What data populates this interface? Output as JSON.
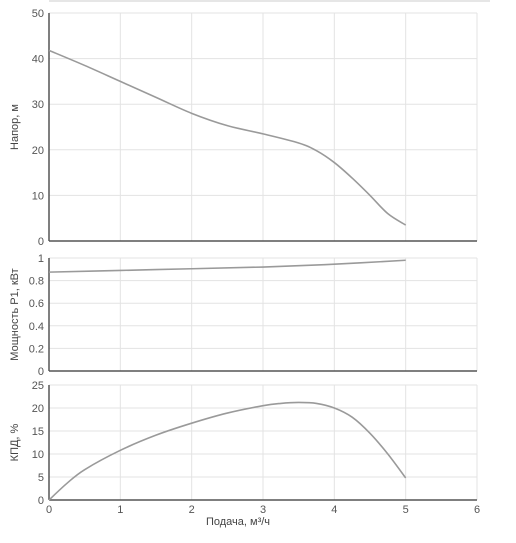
{
  "chart_data": [
    {
      "type": "line",
      "ylabel": "Напор, м",
      "xlim": [
        0,
        6
      ],
      "ylim": [
        0,
        50
      ],
      "y_ticks": [
        0,
        10,
        20,
        30,
        40,
        50
      ],
      "grid": true,
      "series": [
        {
          "x": [
            0,
            0.5,
            1,
            1.5,
            2,
            2.5,
            3,
            3.5,
            3.75,
            4,
            4.25,
            4.5,
            4.75,
            5
          ],
          "y": [
            41.8,
            38.5,
            35,
            31.5,
            28,
            25.3,
            23.5,
            21.5,
            19.8,
            17.2,
            13.8,
            10,
            6,
            3.5
          ]
        }
      ]
    },
    {
      "type": "line",
      "ylabel": "Мощность P1, кВт",
      "xlim": [
        0,
        6
      ],
      "ylim": [
        0,
        1
      ],
      "y_ticks": [
        0,
        0.2,
        0.4,
        0.6,
        0.8,
        1
      ],
      "grid": true,
      "series": [
        {
          "x": [
            0,
            1,
            2,
            3,
            4,
            5
          ],
          "y": [
            0.875,
            0.89,
            0.905,
            0.92,
            0.945,
            0.98
          ]
        }
      ]
    },
    {
      "type": "line",
      "ylabel": "КПД, %",
      "xlabel": "Подача, м³/ч",
      "xlim": [
        0,
        6
      ],
      "ylim": [
        0,
        25
      ],
      "x_ticks": [
        0,
        1,
        2,
        3,
        4,
        5,
        6
      ],
      "y_ticks": [
        0,
        5,
        10,
        15,
        20,
        25
      ],
      "grid": true,
      "series": [
        {
          "x": [
            0,
            0.25,
            0.5,
            1,
            1.5,
            2,
            2.5,
            3,
            3.25,
            3.5,
            3.75,
            4,
            4.25,
            4.5,
            4.75,
            5
          ],
          "y": [
            0,
            3.6,
            6.6,
            10.8,
            14.1,
            16.7,
            18.9,
            20.5,
            21,
            21.2,
            21,
            20,
            18,
            14.5,
            10,
            4.8
          ]
        }
      ]
    }
  ]
}
